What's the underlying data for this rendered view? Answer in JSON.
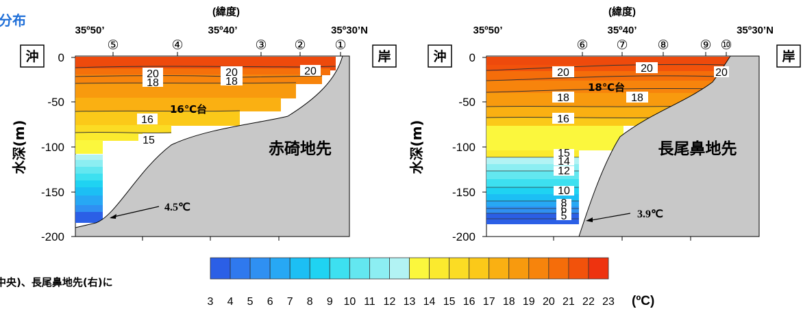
{
  "page_title_fragment": "分布",
  "caption_fragment": "中央)、長尾鼻地先(右)に",
  "chart_data": [
    {
      "type": "heatmap",
      "area_label": "赤碕地先",
      "box_left": "沖",
      "box_right": "岸",
      "xlabel": "(緯度)",
      "ylabel": "水深(m)",
      "lat_ticks": [
        "35º50’",
        "35º40’",
        "35º30’N"
      ],
      "depth_ticks": [
        "0",
        "-50",
        "-100",
        "-150",
        "-200"
      ],
      "ylim": [
        -200,
        0
      ],
      "stations": [
        "⑤",
        "④",
        "③",
        "②",
        "①"
      ],
      "isotherm_labels": [
        "20",
        "20",
        "20",
        "18",
        "18",
        "16",
        "15"
      ],
      "band_label": "16℃台",
      "bottom_temp_annotation": "4.5℃"
    },
    {
      "type": "heatmap",
      "area_label": "長尾鼻地先",
      "box_left": "沖",
      "box_right": "岸",
      "xlabel": "(緯度)",
      "ylabel": "水深(m)",
      "lat_ticks": [
        "35º50’",
        "35º40’",
        "35º30’N"
      ],
      "depth_ticks": [
        "0",
        "-50",
        "-100",
        "-150",
        "-200"
      ],
      "ylim": [
        -200,
        0
      ],
      "stations": [
        "⑥",
        "⑦",
        "⑧",
        "⑨",
        "⑩"
      ],
      "isotherm_labels": [
        "20",
        "20",
        "20",
        "18",
        "18",
        "16",
        "15",
        "14",
        "12",
        "10",
        "8",
        "6",
        "5"
      ],
      "band_label": "18℃台",
      "bottom_temp_annotation": "3.9℃"
    }
  ],
  "colorbar": {
    "ticks": [
      "3",
      "4",
      "5",
      "6",
      "7",
      "8",
      "9",
      "10",
      "11",
      "12",
      "13",
      "14",
      "15",
      "16",
      "17",
      "18",
      "19",
      "20",
      "21",
      "22",
      "23"
    ],
    "unit": "(ºC)",
    "colors": [
      "#2b5fe6",
      "#2f79ee",
      "#2f90f2",
      "#27a8f4",
      "#1cbff4",
      "#1fd3f2",
      "#3de0f0",
      "#63e7f0",
      "#8ceef2",
      "#b2f3f4",
      "#fbf73d",
      "#fbea2e",
      "#fbdc24",
      "#fbc919",
      "#fab012",
      "#f89a0e",
      "#f7840c",
      "#f56d0a",
      "#f2520b",
      "#ee330f"
    ]
  },
  "colors": {
    "land": "#c8c8c8",
    "title": "#1f6fd8"
  }
}
